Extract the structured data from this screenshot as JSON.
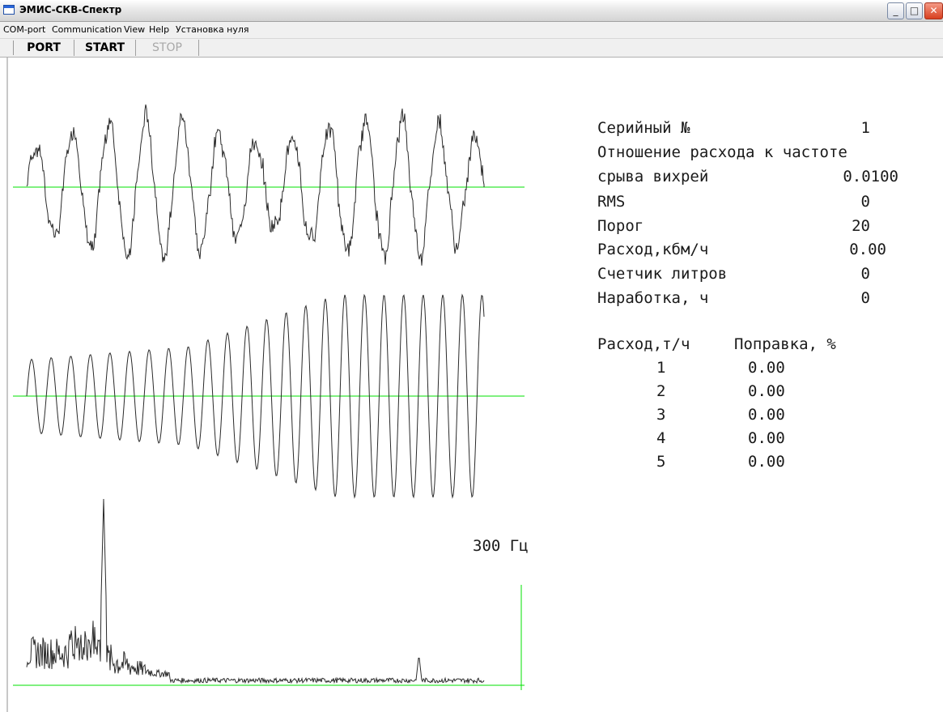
{
  "window": {
    "title": "ЭМИС-СКВ-Спектр"
  },
  "menu": [
    "COM-port",
    "Communication",
    "View",
    "Help",
    "Установка нуля"
  ],
  "toolbar": {
    "port": "PORT",
    "start": "START",
    "stop": "STOP"
  },
  "info": {
    "serial_label": "Серийный №",
    "serial_value": "1",
    "ratio_label_line1": "Отношение расхода к частоте",
    "ratio_label_line2": "срыва вихрей",
    "ratio_value": "0.0100",
    "rms_label": "RMS",
    "rms_value": "0",
    "threshold_label": "Порог",
    "threshold_value": "20",
    "flow_label": "Расход,кбм/ч",
    "flow_value": "0.00",
    "liters_label": "Счетчик литров",
    "liters_value": "0",
    "hours_label": "Наработка, ч",
    "hours_value": "0"
  },
  "correction_table": {
    "col_flow": "Расход,т/ч",
    "col_correction": "Поправка, %",
    "rows": [
      {
        "n": "1",
        "value": "0.00"
      },
      {
        "n": "2",
        "value": "0.00"
      },
      {
        "n": "3",
        "value": "0.00"
      },
      {
        "n": "4",
        "value": "0.00"
      },
      {
        "n": "5",
        "value": "0.00"
      }
    ]
  },
  "spectrum": {
    "freq_label": "300 Гц"
  },
  "colors": {
    "axis": "#00e000",
    "trace": "#2a2a2a"
  }
}
